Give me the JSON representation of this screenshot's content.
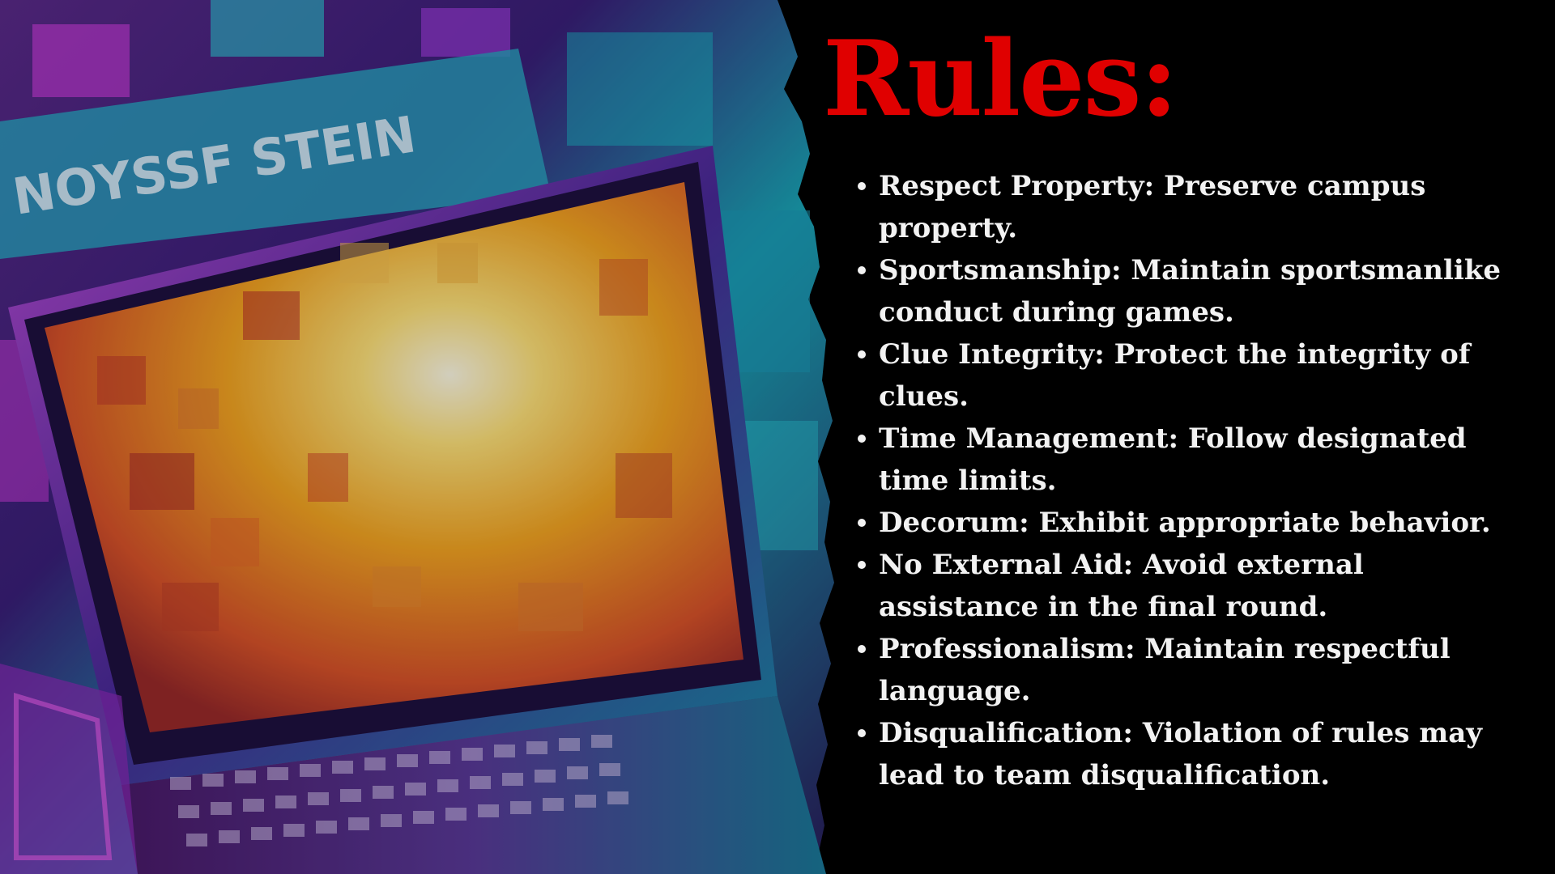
{
  "slide": {
    "title": "Rules:",
    "title_color": "#e00000",
    "text_color": "#f2f2f2",
    "background_color": "#000000",
    "image_description_icon": "laptop-artwork-illustration",
    "image_lettering": "NOYSSF STEIN",
    "rules": [
      {
        "text": "Respect Property: Preserve campus property."
      },
      {
        "text": "Sportsmanship: Maintain sportsmanlike conduct during games."
      },
      {
        "text": "Clue Integrity: Protect the integrity of clues."
      },
      {
        "text": "Time Management: Follow designated time limits."
      },
      {
        "text": "Decorum: Exhibit appropriate behavior."
      },
      {
        "text": "No External Aid: Avoid external assistance in the final round."
      },
      {
        "text": "Professionalism: Maintain respectful language."
      },
      {
        "text": "Disqualification: Violation of rules may lead to team disqualification."
      }
    ]
  }
}
